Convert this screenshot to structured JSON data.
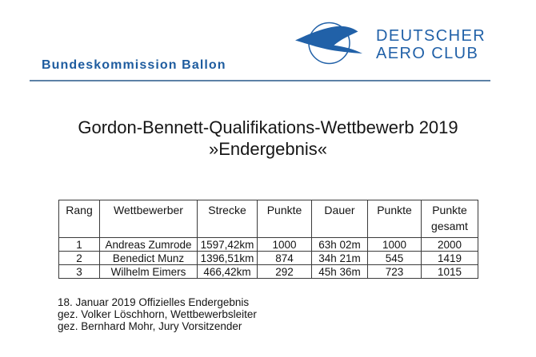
{
  "header": {
    "brand": "Bundeskommission Ballon",
    "logo": {
      "icon": "bird-in-circle",
      "org_line1": "DEUTSCHER",
      "org_line2": "AERO CLUB"
    },
    "colors": {
      "brand_blue": "#1e5c9f",
      "logo_blue": "#2161a8",
      "rule_blue": "#5c81a6"
    }
  },
  "title": {
    "line1": "Gordon-Bennett-Qualifikations-Wettbewerb 2019",
    "line2": "»Endergebnis«"
  },
  "results_table": {
    "columns": [
      "Rang",
      "Wettbewerber",
      "Strecke",
      "Punkte",
      "Dauer",
      "Punkte",
      "Punkte\ngesamt"
    ],
    "rows": [
      [
        "1",
        "Andreas Zumrode",
        "1597,42km",
        "1000",
        "63h 02m",
        "1000",
        "2000"
      ],
      [
        "2",
        "Benedict Munz",
        "1396,51km",
        "874",
        "34h 21m",
        "545",
        "1419"
      ],
      [
        "3",
        "Wilhelm Eimers",
        "466,42km",
        "292",
        "45h 36m",
        "723",
        "1015"
      ]
    ]
  },
  "footer": {
    "lines": [
      "18. Januar 2019 Offizielles Endergebnis",
      "gez. Volker Löschhorn, Wettbewerbsleiter",
      "gez. Bernhard Mohr, Jury Vorsitzender"
    ]
  }
}
